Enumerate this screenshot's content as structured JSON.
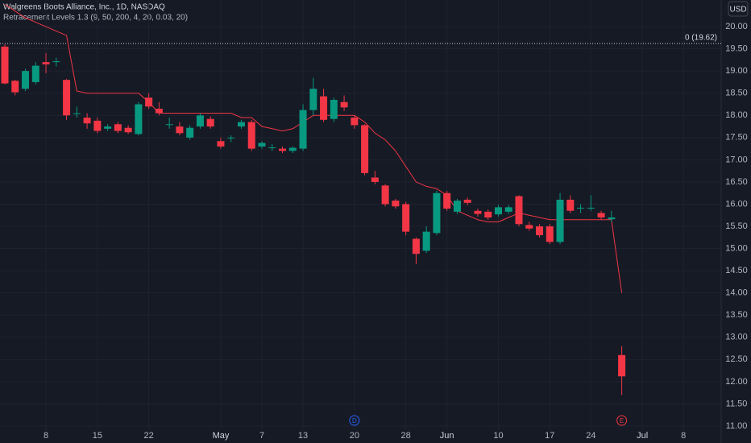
{
  "chart_data": {
    "type": "candlestick",
    "title": "Walgreens Boots Alliance, Inc., 1D, NASDAQ",
    "currency": "USD",
    "up_color": "#089981",
    "down_color": "#f23645",
    "grid": true,
    "categories": [
      null,
      null,
      null,
      null,
      "8",
      null,
      null,
      null,
      null,
      "15",
      null,
      null,
      null,
      null,
      "22",
      null,
      null,
      null,
      null,
      null,
      null,
      "May",
      null,
      null,
      null,
      "7",
      null,
      null,
      null,
      "13",
      null,
      null,
      null,
      null,
      "20",
      null,
      null,
      null,
      null,
      "28",
      null,
      null,
      null,
      "Jun",
      null,
      null,
      null,
      null,
      "10",
      null,
      null,
      null,
      null,
      "17",
      null,
      null,
      null,
      "24",
      null,
      null,
      null,
      null,
      "Jul",
      null,
      null,
      null,
      "8"
    ],
    "open": [
      19.55,
      18.78,
      18.6,
      18.75,
      19.2,
      19.2,
      18.8,
      18.05,
      17.95,
      17.88,
      17.7,
      17.8,
      17.72,
      17.58,
      18.4,
      18.15,
      17.8,
      17.75,
      17.5,
      17.75,
      17.92,
      17.42,
      17.5,
      17.75,
      17.85,
      17.3,
      17.28,
      17.25,
      17.2,
      17.25,
      18.12,
      18.43,
      17.92,
      18.3,
      17.95,
      17.78,
      16.6,
      16.42,
      16.08,
      16.0,
      15.22,
      14.95,
      15.35,
      16.25,
      15.83,
      16.1,
      15.85,
      15.83,
      15.77,
      15.83,
      16.18,
      15.53,
      15.5,
      15.5,
      15.15,
      16.1,
      15.92,
      15.92,
      15.8,
      15.66,
      12.6,
      null,
      null,
      null,
      null,
      null,
      null
    ],
    "high": [
      19.6,
      18.8,
      19.05,
      19.2,
      19.4,
      19.3,
      18.82,
      18.2,
      18.05,
      17.95,
      17.8,
      17.85,
      17.78,
      18.3,
      18.5,
      18.3,
      17.95,
      17.85,
      17.78,
      18.05,
      17.98,
      17.5,
      17.55,
      17.9,
      17.9,
      17.42,
      17.35,
      17.3,
      17.3,
      18.25,
      18.85,
      18.6,
      18.4,
      18.45,
      18.0,
      17.8,
      16.75,
      16.45,
      16.12,
      16.05,
      15.25,
      15.5,
      16.3,
      16.3,
      16.12,
      16.15,
      15.9,
      15.88,
      15.98,
      15.98,
      16.2,
      15.6,
      15.55,
      15.55,
      16.25,
      16.2,
      16.0,
      16.2,
      15.85,
      15.85,
      12.8,
      null,
      null,
      null,
      null,
      null,
      null
    ],
    "low": [
      18.7,
      18.45,
      18.55,
      18.7,
      18.95,
      19.1,
      17.9,
      17.95,
      17.7,
      17.6,
      17.65,
      17.6,
      17.58,
      17.55,
      18.15,
      18.0,
      17.7,
      17.55,
      17.45,
      17.7,
      17.7,
      17.25,
      17.4,
      17.7,
      17.2,
      17.25,
      17.2,
      17.15,
      17.15,
      17.2,
      18.0,
      17.85,
      17.85,
      18.1,
      17.7,
      16.65,
      16.45,
      15.95,
      15.9,
      15.3,
      14.65,
      14.9,
      15.3,
      15.85,
      15.78,
      15.98,
      15.72,
      15.65,
      15.72,
      15.78,
      15.5,
      15.4,
      15.25,
      15.1,
      15.1,
      15.8,
      15.8,
      15.85,
      15.65,
      15.6,
      11.7,
      null,
      null,
      null,
      null,
      null,
      null
    ],
    "close": [
      18.72,
      18.52,
      19.0,
      19.12,
      19.15,
      19.22,
      18.0,
      18.05,
      17.82,
      17.65,
      17.75,
      17.65,
      17.62,
      18.25,
      18.2,
      18.05,
      17.8,
      17.6,
      17.72,
      18.0,
      17.75,
      17.3,
      17.5,
      17.85,
      17.25,
      17.38,
      17.28,
      17.2,
      17.27,
      18.12,
      18.6,
      17.9,
      18.35,
      18.18,
      17.78,
      16.7,
      16.5,
      16.0,
      15.95,
      15.38,
      14.88,
      15.38,
      16.25,
      15.9,
      16.08,
      16.03,
      15.78,
      15.7,
      15.93,
      15.93,
      15.55,
      15.45,
      15.3,
      15.15,
      16.1,
      15.85,
      15.92,
      15.92,
      15.7,
      15.7,
      12.12,
      null,
      null,
      null,
      null,
      null,
      null
    ],
    "line": {
      "name": "Retracement Levels 1.3 (9, 50, 200, 4, 20, 0.03, 20)",
      "color": "#f23645",
      "values": [
        20.5,
        20.35,
        20.2,
        20.1,
        20.0,
        19.9,
        19.8,
        18.55,
        18.5,
        18.5,
        18.5,
        18.5,
        18.5,
        18.5,
        18.3,
        18.05,
        18.05,
        18.05,
        18.05,
        18.05,
        18.05,
        18.05,
        18.05,
        17.95,
        17.95,
        17.75,
        17.7,
        17.65,
        17.7,
        17.85,
        18.0,
        18.0,
        18.0,
        18.0,
        18.0,
        17.85,
        17.6,
        17.45,
        17.2,
        16.85,
        16.5,
        16.4,
        16.35,
        16.2,
        15.85,
        15.75,
        15.65,
        15.6,
        15.6,
        15.7,
        15.8,
        15.75,
        15.7,
        15.65,
        15.65,
        15.65,
        15.65,
        15.65,
        15.65,
        15.65,
        14.0,
        null,
        null,
        null,
        null,
        null,
        null
      ]
    },
    "level": {
      "value": 19.62,
      "label": "0 (19.62)"
    },
    "events": [
      {
        "index": 34,
        "label": "D"
      },
      {
        "index": 60,
        "label": "E"
      }
    ],
    "ylim": [
      10.9,
      20.6
    ],
    "yticks": [
      {
        "value": 11,
        "label": "11.00"
      },
      {
        "value": 11.5,
        "label": "11.50"
      },
      {
        "value": 12,
        "label": "12.00"
      },
      {
        "value": 12.5,
        "label": "12.50"
      },
      {
        "value": 13,
        "label": "13.00"
      },
      {
        "value": 13.5,
        "label": "13.50"
      },
      {
        "value": 14,
        "label": "14.00"
      },
      {
        "value": 14.5,
        "label": "14.50"
      },
      {
        "value": 15,
        "label": "15.00"
      },
      {
        "value": 15.5,
        "label": "15.50"
      },
      {
        "value": 16,
        "label": "16.00"
      },
      {
        "value": 16.5,
        "label": "16.50"
      },
      {
        "value": 17,
        "label": "17.00"
      },
      {
        "value": 17.5,
        "label": "17.50"
      },
      {
        "value": 18,
        "label": "18.00"
      },
      {
        "value": 18.5,
        "label": "18.50"
      },
      {
        "value": 19,
        "label": "19.00"
      },
      {
        "value": 19.5,
        "label": "19.50"
      },
      {
        "value": 20,
        "label": "20.00"
      }
    ]
  }
}
